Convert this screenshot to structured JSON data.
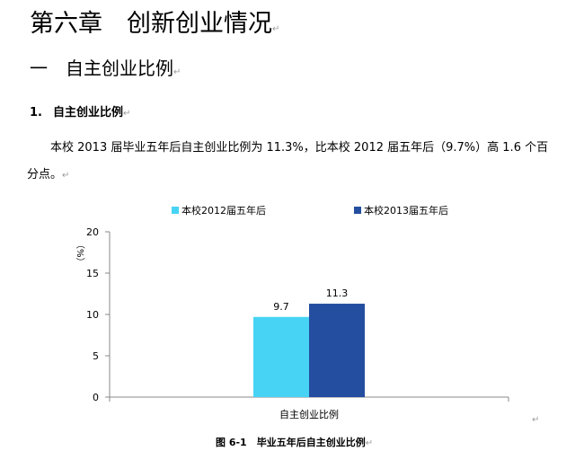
{
  "chapter_title": "第六章　创新创业情况",
  "section_title": "一　自主创业比例",
  "subsection": {
    "number": "1.",
    "title": "自主创业比例"
  },
  "paragraph": "本校 2013 届毕业五年后自主创业比例为 11.3%，比本校 2012 届五年后（9.7%）高 1.6 个百分点。",
  "paragraph_mark": "↵",
  "chart_data": {
    "type": "bar",
    "categories": [
      "自主创业比例"
    ],
    "series": [
      {
        "name": "本校2012届五年后",
        "values": [
          9.7
        ],
        "color": "#47d3f4"
      },
      {
        "name": "本校2013届五年后",
        "values": [
          11.3
        ],
        "color": "#244e9f"
      }
    ],
    "ylabel": "（%）",
    "ylim": [
      0,
      20
    ],
    "yticks": [
      0,
      5,
      10,
      15,
      20
    ],
    "data_labels": [
      "9.7",
      "11.3"
    ],
    "legend_position": "top",
    "grid": false
  },
  "caption": "图 6-1　毕业五年后自主创业比例"
}
